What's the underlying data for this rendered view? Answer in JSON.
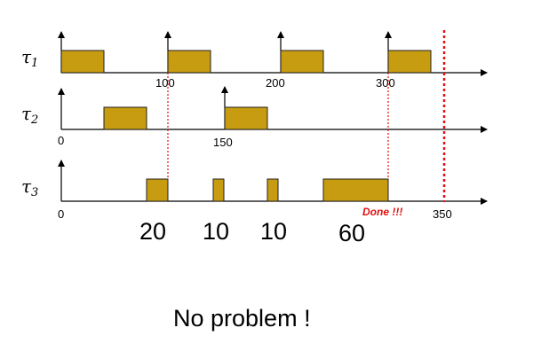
{
  "tasks": [
    {
      "symbol": "τ",
      "index": "1"
    },
    {
      "symbol": "τ",
      "index": "2"
    },
    {
      "symbol": "τ",
      "index": "3"
    }
  ],
  "tick_labels": {
    "t100": "100",
    "t200": "200",
    "t300": "300",
    "t150": "150",
    "t0_tau2": "0",
    "t0_tau3": "0",
    "t350": "350"
  },
  "budgets": [
    "20",
    "10",
    "10",
    "60"
  ],
  "done_label": "Done !!!",
  "conclusion": "No problem !",
  "colors": {
    "block": "#c89c10",
    "guide": "#e01010"
  }
}
